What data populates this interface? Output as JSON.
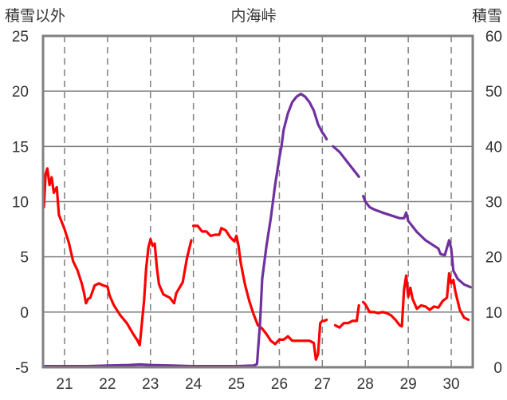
{
  "chart_data": {
    "type": "line",
    "title": "内海峠",
    "ylabel_left": "積雪以外",
    "ylabel_right": "積雪",
    "x_tick_labels": [
      "21",
      "22",
      "23",
      "24",
      "25",
      "26",
      "27",
      "28",
      "29",
      "30"
    ],
    "y_left_ticks": [
      "25",
      "20",
      "15",
      "10",
      "5",
      "0",
      "-5"
    ],
    "y_right_ticks": [
      "60",
      "50",
      "40",
      "30",
      "20",
      "10",
      "0"
    ],
    "ylim_left": [
      -5,
      25
    ],
    "ylim_right": [
      0,
      60
    ],
    "xlim": [
      20.5,
      30.5
    ],
    "grid": "vertical dashed at each day, horizontal solid at each major tick",
    "series": [
      {
        "axis": "left",
        "color": "#ff0000",
        "segments": [
          [
            [
              20.52,
              9.5
            ],
            [
              20.56,
              12.5
            ],
            [
              20.6,
              13.0
            ],
            [
              20.65,
              11.5
            ],
            [
              20.7,
              12.2
            ],
            [
              20.75,
              10.8
            ],
            [
              20.82,
              11.3
            ],
            [
              20.87,
              8.8
            ],
            [
              20.95,
              8.0
            ],
            [
              21.0,
              7.5
            ],
            [
              21.1,
              6.3
            ],
            [
              21.2,
              4.6
            ],
            [
              21.3,
              3.8
            ],
            [
              21.4,
              2.6
            ],
            [
              21.45,
              1.8
            ],
            [
              21.5,
              0.8
            ],
            [
              21.55,
              1.2
            ],
            [
              21.6,
              1.3
            ],
            [
              21.7,
              2.4
            ],
            [
              21.8,
              2.6
            ],
            [
              21.9,
              2.4
            ],
            [
              22.0,
              2.3
            ],
            [
              22.05,
              1.5
            ],
            [
              22.15,
              0.6
            ],
            [
              22.3,
              -0.3
            ],
            [
              22.45,
              -1.0
            ],
            [
              22.6,
              -2.0
            ],
            [
              22.7,
              -2.6
            ],
            [
              22.75,
              -3.0
            ],
            [
              22.8,
              -1.0
            ],
            [
              22.85,
              1.0
            ],
            [
              22.9,
              4.0
            ],
            [
              22.95,
              5.8
            ],
            [
              23.0,
              6.6
            ],
            [
              23.05,
              6.0
            ],
            [
              23.1,
              6.2
            ],
            [
              23.15,
              4.0
            ],
            [
              23.2,
              2.5
            ],
            [
              23.3,
              1.6
            ],
            [
              23.45,
              1.3
            ],
            [
              23.55,
              0.8
            ],
            [
              23.6,
              1.7
            ],
            [
              23.75,
              2.7
            ],
            [
              23.85,
              4.9
            ],
            [
              23.95,
              6.5
            ]
          ],
          [
            [
              24.0,
              7.8
            ],
            [
              24.1,
              7.8
            ],
            [
              24.2,
              7.3
            ],
            [
              24.3,
              7.3
            ],
            [
              24.4,
              6.9
            ],
            [
              24.5,
              7.0
            ],
            [
              24.6,
              7.0
            ],
            [
              24.65,
              7.6
            ],
            [
              24.75,
              7.4
            ],
            [
              24.85,
              6.8
            ],
            [
              24.95,
              6.4
            ],
            [
              25.0,
              6.9
            ],
            [
              25.05,
              6.0
            ],
            [
              25.1,
              4.5
            ],
            [
              25.2,
              2.5
            ],
            [
              25.3,
              1.0
            ],
            [
              25.4,
              -0.2
            ],
            [
              25.5,
              -1.2
            ],
            [
              25.6,
              -1.5
            ],
            [
              25.7,
              -2.0
            ],
            [
              25.8,
              -2.6
            ],
            [
              25.9,
              -2.9
            ],
            [
              26.0,
              -2.5
            ],
            [
              26.1,
              -2.5
            ],
            [
              26.2,
              -2.2
            ],
            [
              26.3,
              -2.6
            ],
            [
              26.4,
              -2.6
            ],
            [
              26.5,
              -2.6
            ],
            [
              26.6,
              -2.6
            ],
            [
              26.7,
              -2.6
            ],
            [
              26.8,
              -2.8
            ],
            [
              26.85,
              -4.3
            ],
            [
              26.9,
              -3.8
            ],
            [
              26.95,
              -1.0
            ],
            [
              27.0,
              -0.8
            ],
            [
              27.05,
              -0.8
            ],
            [
              27.1,
              -0.7
            ]
          ],
          [
            [
              27.3,
              -1.2
            ],
            [
              27.4,
              -1.4
            ],
            [
              27.5,
              -1.0
            ],
            [
              27.6,
              -1.0
            ],
            [
              27.7,
              -0.8
            ],
            [
              27.8,
              -0.8
            ],
            [
              27.85,
              0.6
            ]
          ],
          [
            [
              27.95,
              0.9
            ],
            [
              28.0,
              0.7
            ],
            [
              28.1,
              0.0
            ],
            [
              28.2,
              0.0
            ],
            [
              28.3,
              -0.1
            ],
            [
              28.4,
              0.0
            ],
            [
              28.5,
              -0.1
            ],
            [
              28.6,
              -0.3
            ],
            [
              28.7,
              -0.7
            ],
            [
              28.8,
              -1.2
            ],
            [
              28.85,
              -1.3
            ],
            [
              28.9,
              2.0
            ],
            [
              28.95,
              3.3
            ],
            [
              29.0,
              1.4
            ],
            [
              29.05,
              2.2
            ],
            [
              29.1,
              1.2
            ],
            [
              29.2,
              0.3
            ],
            [
              29.3,
              0.6
            ],
            [
              29.4,
              0.5
            ],
            [
              29.5,
              0.2
            ],
            [
              29.6,
              0.5
            ],
            [
              29.7,
              0.4
            ],
            [
              29.8,
              1.0
            ],
            [
              29.9,
              1.3
            ],
            [
              29.95,
              3.5
            ],
            [
              30.0,
              2.6
            ],
            [
              30.05,
              2.9
            ],
            [
              30.1,
              1.8
            ],
            [
              30.2,
              0.2
            ],
            [
              30.3,
              -0.5
            ],
            [
              30.4,
              -0.7
            ]
          ]
        ]
      },
      {
        "axis": "right",
        "color": "#7030a0",
        "segments": [
          [
            [
              20.5,
              0.2
            ],
            [
              21.0,
              0.2
            ],
            [
              21.5,
              0.2
            ],
            [
              22.0,
              0.3
            ],
            [
              22.5,
              0.4
            ],
            [
              22.75,
              0.5
            ],
            [
              23.0,
              0.4
            ],
            [
              23.5,
              0.3
            ],
            [
              24.0,
              0.2
            ],
            [
              24.5,
              0.2
            ],
            [
              25.0,
              0.2
            ],
            [
              25.4,
              0.3
            ],
            [
              25.48,
              0.6
            ],
            [
              25.55,
              8.0
            ],
            [
              25.6,
              16.0
            ],
            [
              25.7,
              22.0
            ],
            [
              25.8,
              27.0
            ],
            [
              25.9,
              33.0
            ],
            [
              26.0,
              38.0
            ],
            [
              26.05,
              40.0
            ],
            [
              26.1,
              43.0
            ],
            [
              26.2,
              46.0
            ],
            [
              26.3,
              48.0
            ],
            [
              26.4,
              49.0
            ],
            [
              26.5,
              49.5
            ],
            [
              26.6,
              49.0
            ],
            [
              26.7,
              48.0
            ],
            [
              26.8,
              46.5
            ],
            [
              26.9,
              44.0
            ],
            [
              27.0,
              42.5
            ],
            [
              27.05,
              42.0
            ],
            [
              27.1,
              41.3
            ]
          ],
          [
            [
              27.25,
              40.0
            ],
            [
              27.4,
              39.0
            ],
            [
              27.5,
              38.0
            ],
            [
              27.6,
              37.0
            ],
            [
              27.7,
              36.0
            ],
            [
              27.8,
              35.0
            ],
            [
              27.85,
              34.5
            ]
          ],
          [
            [
              27.95,
              31.0
            ],
            [
              28.0,
              30.0
            ],
            [
              28.1,
              29.0
            ],
            [
              28.2,
              28.6
            ],
            [
              28.4,
              28.0
            ],
            [
              28.6,
              27.5
            ],
            [
              28.8,
              27.0
            ],
            [
              28.9,
              27.0
            ],
            [
              28.95,
              28.0
            ],
            [
              29.0,
              26.5
            ],
            [
              29.2,
              24.5
            ],
            [
              29.4,
              23.0
            ],
            [
              29.6,
              22.0
            ],
            [
              29.7,
              21.5
            ],
            [
              29.75,
              20.5
            ],
            [
              29.85,
              20.3
            ],
            [
              29.95,
              23.0
            ],
            [
              30.0,
              21.5
            ],
            [
              30.05,
              17.5
            ],
            [
              30.15,
              16.0
            ],
            [
              30.3,
              15.0
            ],
            [
              30.45,
              14.5
            ]
          ]
        ]
      }
    ]
  }
}
